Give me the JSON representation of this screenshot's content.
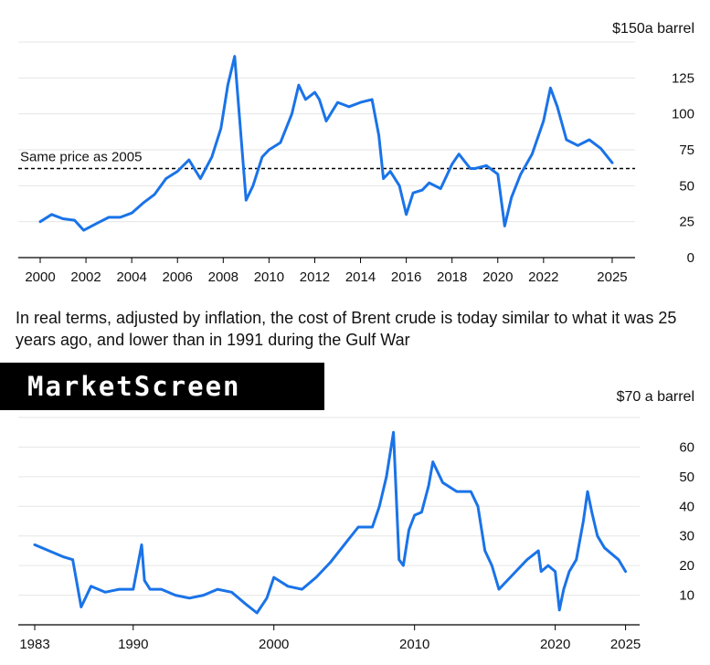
{
  "caption": "In real terms, adjusted by inflation, the cost of Brent crude is today similar to what it was 25 years ago, and lower than in 1991 during the Gulf War",
  "brand": "MarketScreen",
  "colors": {
    "line": "#1a73e8",
    "grid": "#e6e6e6",
    "axis": "#000000",
    "text": "#111111"
  },
  "chart_data": [
    {
      "type": "line",
      "unit_label": "$150a barrel",
      "ylim": [
        0,
        150
      ],
      "y_ticks": [
        0,
        25,
        50,
        75,
        100,
        125
      ],
      "y_tick_labels": [
        "0",
        "25",
        "50",
        "75",
        "100",
        "125"
      ],
      "xlim": [
        2000,
        2026
      ],
      "x_ticks": [
        2000,
        2002,
        2004,
        2006,
        2008,
        2010,
        2012,
        2014,
        2016,
        2018,
        2020,
        2022,
        2025
      ],
      "x_tick_labels": [
        "2000",
        "2002",
        "2004",
        "2006",
        "2008",
        "2010",
        "2012",
        "2014",
        "2016",
        "2018",
        "2020",
        "2022",
        "2025"
      ],
      "grid": true,
      "reference_line": {
        "label": "Same price as 2005",
        "value": 62
      },
      "series": [
        {
          "x": [
            2000.0,
            2000.5,
            2001.0,
            2001.5,
            2001.9,
            2002.5,
            2003.0,
            2003.5,
            2004.0,
            2004.5,
            2005.0,
            2005.5,
            2006.0,
            2006.5,
            2007.0,
            2007.5,
            2007.9,
            2008.2,
            2008.5,
            2008.8,
            2009.0,
            2009.3,
            2009.7,
            2010.0,
            2010.5,
            2011.0,
            2011.3,
            2011.6,
            2012.0,
            2012.2,
            2012.5,
            2013.0,
            2013.5,
            2014.0,
            2014.5,
            2014.8,
            2015.0,
            2015.3,
            2015.7,
            2016.0,
            2016.3,
            2016.7,
            2017.0,
            2017.5,
            2018.0,
            2018.3,
            2018.8,
            2019.0,
            2019.5,
            2020.0,
            2020.3,
            2020.6,
            2021.0,
            2021.5,
            2022.0,
            2022.3,
            2022.6,
            2023.0,
            2023.5,
            2024.0,
            2024.5,
            2025.0
          ],
          "y": [
            25,
            30,
            27,
            26,
            19,
            24,
            28,
            28,
            31,
            38,
            44,
            55,
            60,
            68,
            55,
            70,
            90,
            120,
            140,
            80,
            40,
            50,
            70,
            75,
            80,
            100,
            120,
            110,
            115,
            110,
            95,
            108,
            105,
            108,
            110,
            85,
            55,
            60,
            50,
            30,
            45,
            47,
            52,
            48,
            65,
            72,
            62,
            62,
            64,
            58,
            22,
            42,
            58,
            72,
            95,
            118,
            105,
            82,
            78,
            82,
            76,
            66
          ]
        }
      ]
    },
    {
      "type": "line",
      "unit_label": "$70 a barrel",
      "ylim": [
        0,
        70
      ],
      "y_ticks": [
        10,
        20,
        30,
        40,
        50,
        60
      ],
      "y_tick_labels": [
        "10",
        "20",
        "30",
        "40",
        "50",
        "60"
      ],
      "xlim": [
        1983,
        2026
      ],
      "x_ticks": [
        1983,
        1990,
        2000,
        2010,
        2020,
        2025
      ],
      "x_tick_labels": [
        "1983",
        "1990",
        "2000",
        "2010",
        "2020",
        "2025"
      ],
      "grid": true,
      "series": [
        {
          "x": [
            1983.0,
            1984.0,
            1985.0,
            1985.7,
            1986.3,
            1987.0,
            1988.0,
            1989.0,
            1990.0,
            1990.6,
            1990.8,
            1991.2,
            1992.0,
            1993.0,
            1994.0,
            1995.0,
            1996.0,
            1997.0,
            1998.0,
            1998.8,
            1999.5,
            2000.0,
            2001.0,
            2002.0,
            2003.0,
            2004.0,
            2005.0,
            2006.0,
            2007.0,
            2007.5,
            2008.0,
            2008.5,
            2008.9,
            2009.2,
            2009.6,
            2010.0,
            2010.5,
            2011.0,
            2011.3,
            2012.0,
            2013.0,
            2014.0,
            2014.5,
            2015.0,
            2015.5,
            2016.0,
            2017.0,
            2018.0,
            2018.8,
            2019.0,
            2019.5,
            2020.0,
            2020.3,
            2020.6,
            2021.0,
            2021.5,
            2022.0,
            2022.3,
            2022.6,
            2023.0,
            2023.5,
            2024.0,
            2024.5,
            2025.0
          ],
          "y": [
            27,
            25,
            23,
            22,
            6,
            13,
            11,
            12,
            12,
            27,
            15,
            12,
            12,
            10,
            9,
            10,
            12,
            11,
            7,
            4,
            9,
            16,
            13,
            12,
            16,
            21,
            27,
            33,
            33,
            40,
            50,
            65,
            22,
            20,
            32,
            37,
            38,
            47,
            55,
            48,
            45,
            45,
            40,
            25,
            20,
            12,
            17,
            22,
            25,
            18,
            20,
            18,
            5,
            12,
            18,
            22,
            35,
            45,
            38,
            30,
            26,
            24,
            22,
            18
          ]
        }
      ]
    }
  ]
}
